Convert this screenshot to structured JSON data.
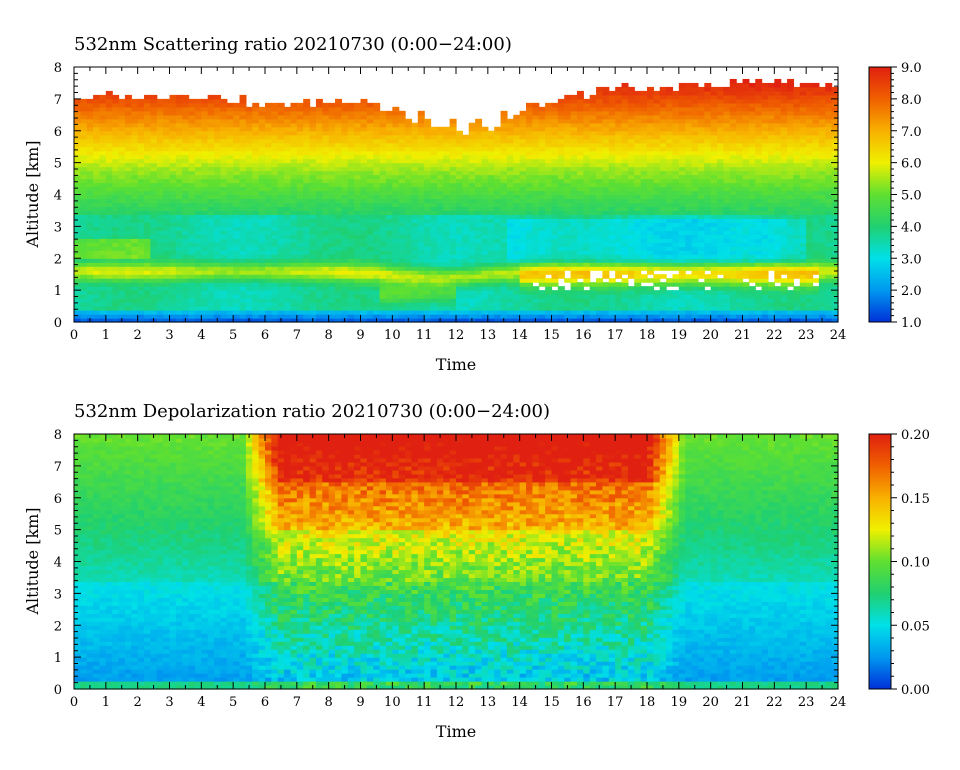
{
  "chart_data": [
    {
      "type": "heatmap",
      "title": "532nm Scattering ratio  20210730 (0:00−24:00)",
      "xlabel": "Time",
      "ylabel": "Altitude [km]",
      "xlim": [
        0,
        24
      ],
      "ylim": [
        0,
        8
      ],
      "x_ticks": [
        0,
        1,
        2,
        3,
        4,
        5,
        6,
        7,
        8,
        9,
        10,
        11,
        12,
        13,
        14,
        15,
        16,
        17,
        18,
        19,
        20,
        21,
        22,
        23,
        24
      ],
      "y_ticks": [
        0,
        1,
        2,
        3,
        4,
        5,
        6,
        7,
        8
      ],
      "colorbar": {
        "min": 1.0,
        "max": 9.0,
        "tick_labels": [
          "1.0",
          "2.0",
          "3.0",
          "4.0",
          "5.0",
          "6.0",
          "7.0",
          "8.0",
          "9.0"
        ],
        "colormap": [
          "#0030d8",
          "#0098f0",
          "#00e0e8",
          "#20d070",
          "#60e030",
          "#f0f000",
          "#f8b000",
          "#f06000",
          "#e02010"
        ]
      },
      "features": {
        "top_of_signal_km": [
          7.0,
          7.1,
          7.1,
          7.15,
          7.1,
          7.0,
          6.8,
          6.85,
          6.95,
          7.0,
          6.8,
          6.5,
          6.3,
          6.2,
          6.8,
          7.1,
          7.3,
          7.35,
          7.3,
          7.4,
          7.45,
          7.5,
          7.6,
          7.5,
          7.4
        ],
        "layer_km": [
          1.2,
          1.9
        ]
      }
    },
    {
      "type": "heatmap",
      "title": "532nm Depolarization ratio  20210730 (0:00−24:00)",
      "xlabel": "Time",
      "ylabel": "Altitude [km]",
      "xlim": [
        0,
        24
      ],
      "ylim": [
        0,
        8
      ],
      "x_ticks": [
        0,
        1,
        2,
        3,
        4,
        5,
        6,
        7,
        8,
        9,
        10,
        11,
        12,
        13,
        14,
        15,
        16,
        17,
        18,
        19,
        20,
        21,
        22,
        23,
        24
      ],
      "y_ticks": [
        0,
        1,
        2,
        3,
        4,
        5,
        6,
        7,
        8
      ],
      "colorbar": {
        "min": 0.0,
        "max": 0.2,
        "tick_labels": [
          "0.00",
          "0.05",
          "0.10",
          "0.15",
          "0.20"
        ],
        "colormap": [
          "#0030d8",
          "#0098f0",
          "#00e0e8",
          "#20d070",
          "#60e030",
          "#f0f000",
          "#f8b000",
          "#f06000",
          "#e02010"
        ]
      }
    }
  ]
}
